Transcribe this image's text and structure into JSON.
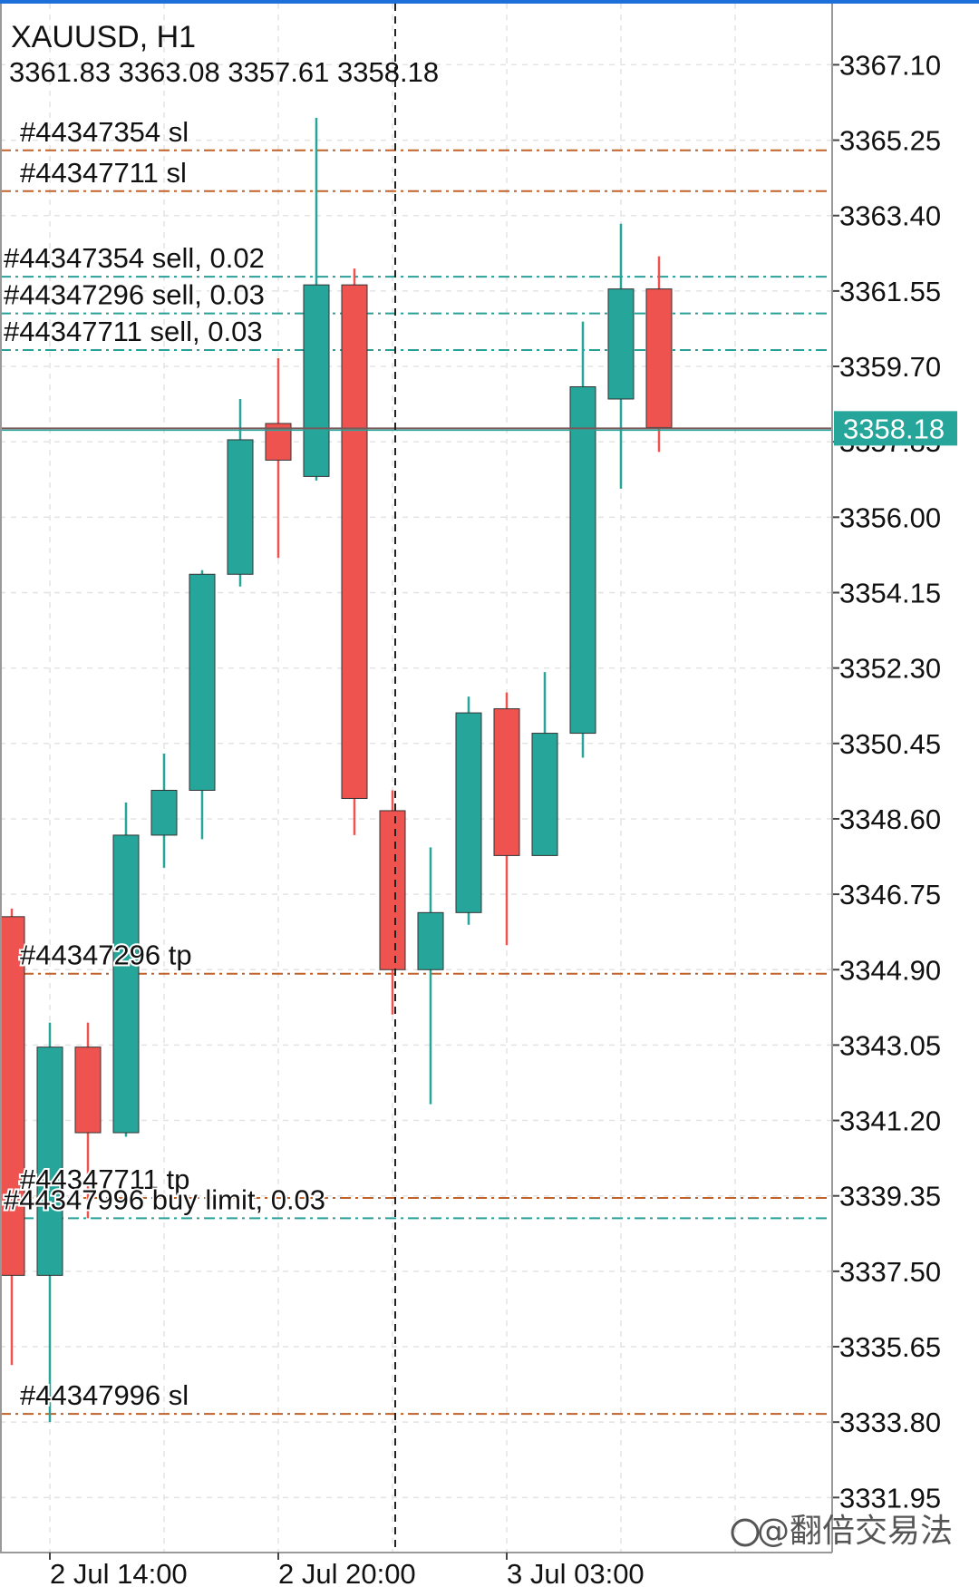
{
  "header": {
    "symbol_line": "XAUUSD, H1",
    "ohlc_line": "3361.83 3363.08 3357.61 3358.18"
  },
  "watermark": "@翻倍交易法",
  "colors": {
    "bull": "#26a69a",
    "bear": "#ef5350",
    "sl_line": "#c0622a",
    "order_line": "#2aa198",
    "price_tag_bg": "#26a69a",
    "grid": "#e3e3e3",
    "axis_border": "#999999"
  },
  "chart_data": {
    "type": "candlestick",
    "symbol": "XAUUSD",
    "timeframe": "H1",
    "ylim": [
      3330.6,
      3368.6
    ],
    "y_ticks": [
      "3367.10",
      "3365.25",
      "3363.40",
      "3361.55",
      "3359.70",
      "3357.85",
      "3356.00",
      "3354.15",
      "3352.30",
      "3350.45",
      "3348.60",
      "3346.75",
      "3344.90",
      "3343.05",
      "3341.20",
      "3339.35",
      "3337.50",
      "3335.65",
      "3333.80",
      "3331.95"
    ],
    "x_labels": [
      {
        "bar": 1,
        "text": "2 Jul 14:00"
      },
      {
        "bar": 7,
        "text": "2 Jul 20:00"
      },
      {
        "bar": 13,
        "text": "3 Jul 03:00"
      }
    ],
    "crosshair_bar": 10,
    "candles": [
      {
        "open": 3346.2,
        "high": 3346.4,
        "low": 3335.2,
        "close": 3337.4
      },
      {
        "open": 3337.4,
        "high": 3343.6,
        "low": 3333.8,
        "close": 3343.0
      },
      {
        "open": 3343.0,
        "high": 3343.6,
        "low": 3338.8,
        "close": 3340.9
      },
      {
        "open": 3340.9,
        "high": 3349.0,
        "low": 3340.8,
        "close": 3348.2
      },
      {
        "open": 3348.2,
        "high": 3350.2,
        "low": 3347.4,
        "close": 3349.3
      },
      {
        "open": 3349.3,
        "high": 3354.7,
        "low": 3348.1,
        "close": 3354.6
      },
      {
        "open": 3354.6,
        "high": 3358.9,
        "low": 3354.3,
        "close": 3357.9
      },
      {
        "open": 3358.3,
        "high": 3359.9,
        "low": 3355.0,
        "close": 3357.4
      },
      {
        "open": 3357.0,
        "high": 3365.8,
        "low": 3356.9,
        "close": 3361.7
      },
      {
        "open": 3361.7,
        "high": 3362.1,
        "low": 3348.2,
        "close": 3349.1
      },
      {
        "open": 3348.8,
        "high": 3349.3,
        "low": 3343.8,
        "close": 3344.9
      },
      {
        "open": 3344.9,
        "high": 3347.9,
        "low": 3341.6,
        "close": 3346.3
      },
      {
        "open": 3346.3,
        "high": 3351.6,
        "low": 3346.0,
        "close": 3351.2
      },
      {
        "open": 3351.3,
        "high": 3351.7,
        "low": 3345.5,
        "close": 3347.7
      },
      {
        "open": 3347.7,
        "high": 3352.2,
        "low": 3347.7,
        "close": 3350.7
      },
      {
        "open": 3350.7,
        "high": 3360.8,
        "low": 3350.1,
        "close": 3359.2
      },
      {
        "open": 3358.9,
        "high": 3363.2,
        "low": 3356.7,
        "close": 3361.6
      },
      {
        "open": 3361.6,
        "high": 3362.4,
        "low": 3357.6,
        "close": 3358.2
      }
    ],
    "current_price": "3358.18",
    "levels": [
      {
        "price": 3365.0,
        "label": "#44347354 sl",
        "kind": "sl"
      },
      {
        "price": 3364.0,
        "label": "#44347711 sl",
        "kind": "sl"
      },
      {
        "price": 3361.9,
        "label": "#44347354 sell, 0.02",
        "kind": "order"
      },
      {
        "price": 3361.0,
        "label": "#44347296 sell, 0.03",
        "kind": "order"
      },
      {
        "price": 3360.1,
        "label": "#44347711 sell, 0.03",
        "kind": "order"
      },
      {
        "price": 3344.8,
        "label": "#44347296 tp",
        "kind": "sl"
      },
      {
        "price": 3339.3,
        "label": "#44347711 tp",
        "kind": "sl"
      },
      {
        "price": 3338.8,
        "label": "#44347996 buy limit, 0.03",
        "kind": "order"
      },
      {
        "price": 3334.0,
        "label": "#44347996 sl",
        "kind": "sl"
      }
    ]
  }
}
